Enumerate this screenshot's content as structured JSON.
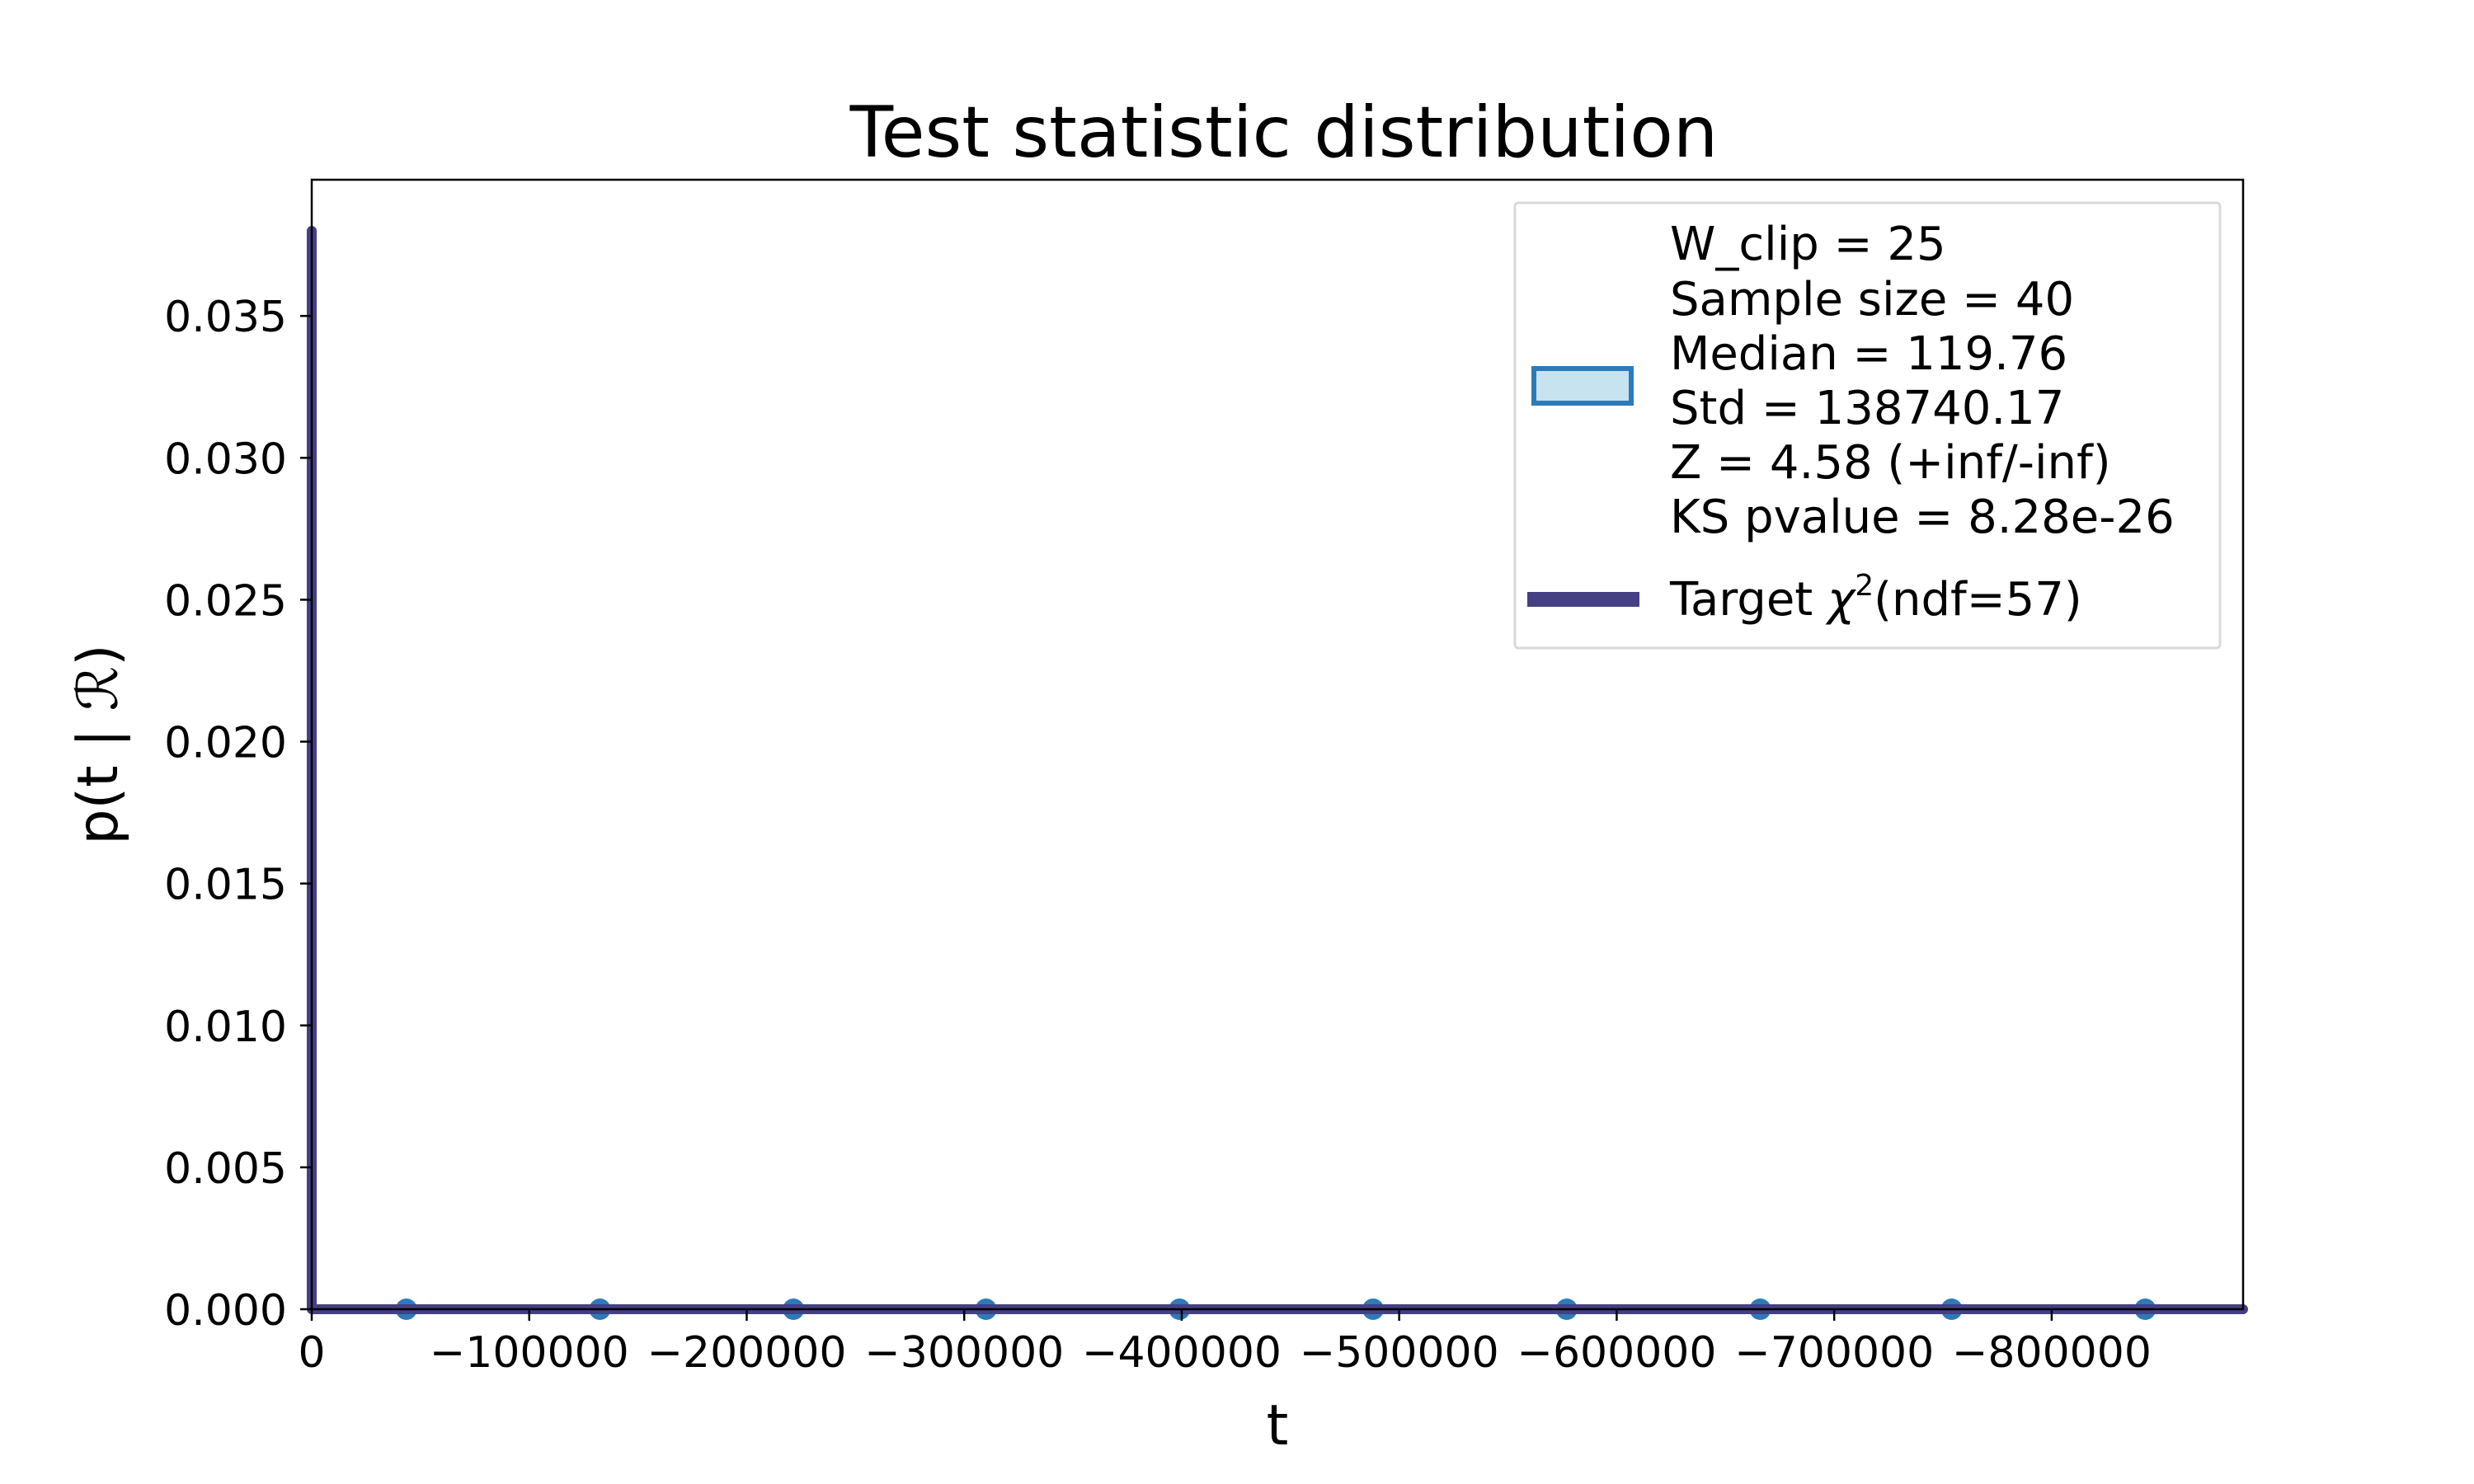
{
  "chart_data": {
    "type": "histogram",
    "title": "Test statistic distribution",
    "xlabel": "t",
    "ylabel": "p(t | ℛ)",
    "xlim": [
      0,
      888000
    ],
    "ylim": [
      0,
      0.0398
    ],
    "x_ticks": [
      {
        "value": 0,
        "label": "0"
      },
      {
        "value": 100000,
        "label": "−100000"
      },
      {
        "value": 200000,
        "label": "−200000"
      },
      {
        "value": 300000,
        "label": "−300000"
      },
      {
        "value": 400000,
        "label": "−400000"
      },
      {
        "value": 500000,
        "label": "−500000"
      },
      {
        "value": 600000,
        "label": "−600000"
      },
      {
        "value": 700000,
        "label": "−700000"
      },
      {
        "value": 800000,
        "label": "−800000"
      }
    ],
    "y_ticks": [
      {
        "value": 0.0,
        "label": "0.000"
      },
      {
        "value": 0.005,
        "label": "0.005"
      },
      {
        "value": 0.01,
        "label": "0.010"
      },
      {
        "value": 0.015,
        "label": "0.015"
      },
      {
        "value": 0.02,
        "label": "0.020"
      },
      {
        "value": 0.025,
        "label": "0.025"
      },
      {
        "value": 0.03,
        "label": "0.030"
      },
      {
        "value": 0.035,
        "label": "0.035"
      }
    ],
    "grid": false,
    "histogram": {
      "bin_centers": [
        43500,
        132500,
        221500,
        310000,
        399000,
        488000,
        577000,
        666000,
        754000,
        843000
      ],
      "values": [
        0,
        0,
        0,
        0,
        0,
        0,
        0,
        0,
        0,
        0
      ],
      "fill_color": "#c6e3ef",
      "edge_color": "#2b7bba"
    },
    "target_curve": {
      "x": [
        0,
        0,
        0
      ],
      "y": [
        0.038,
        0.0,
        0.0
      ],
      "x_end": 888000,
      "color": "#453f84"
    },
    "legend": {
      "placement": "top-right",
      "hist_lines": [
        "W_clip = 25",
        "Sample size = 40",
        "Median = 119.76",
        "Std = 138740.17",
        "Z = 4.58 (+inf/-inf)",
        "KS pvalue = 8.28e-26"
      ],
      "target_prefix": "Target ",
      "target_symbol": "χ",
      "target_superscript": "2",
      "target_suffix": "(ndf=57)"
    }
  }
}
